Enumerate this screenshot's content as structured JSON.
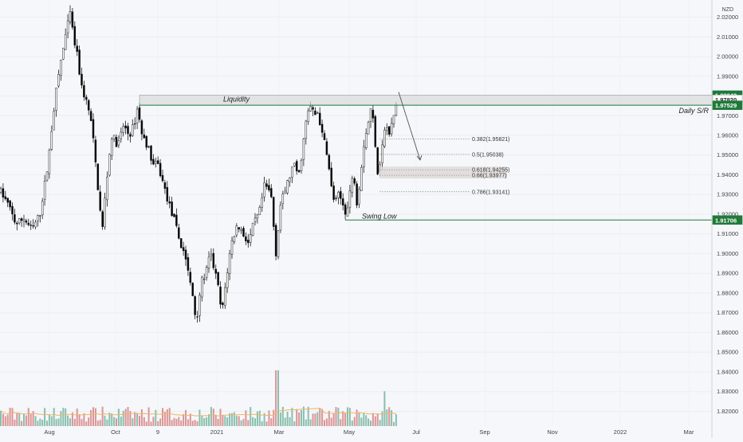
{
  "currency": "NZD",
  "colors": {
    "up": "#ffffff",
    "down": "#000000",
    "candle_border": "#1c1c1c",
    "vol_up": "#7fb8a4",
    "vol_down": "#d98a8a",
    "vol_ma": "#f0b56a",
    "line_green": "#1f7a3a",
    "box_fill": "#d9dadb",
    "fib_dotted": "#8a8a8a",
    "fib_highlight": "#e0d8d8",
    "price_label_green": "#1f7a3a",
    "price_label_white": "#ffffff",
    "axis_text": "#444444",
    "background": "#f5f7fa"
  },
  "chart_data": {
    "type": "candlestick",
    "title": "",
    "xlabel": "",
    "ylabel": "",
    "ylim": [
      1.8125,
      2.0287
    ],
    "x_ticks": [
      "Aug",
      "Oct",
      "9",
      "2021",
      "Mar",
      "May",
      "Jul",
      "Sep",
      "Nov",
      "2022",
      "Mar"
    ],
    "y_ticks": [
      1.82,
      1.83,
      1.84,
      1.85,
      1.86,
      1.87,
      1.88,
      1.89,
      1.9,
      1.91,
      1.92,
      1.93,
      1.94,
      1.95,
      1.96,
      1.97,
      1.98,
      1.99,
      2.0,
      2.01,
      2.02
    ],
    "y_tick_labels": [
      "1.82000",
      "1.83000",
      "1.84000",
      "1.85000",
      "1.86000",
      "1.87000",
      "1.88000",
      "1.89000",
      "1.90000",
      "1.91000",
      "1.92000",
      "1.93000",
      "1.94000",
      "1.95000",
      "1.96000",
      "1.97000",
      "1.98000",
      "1.99000",
      "2.00000",
      "2.01000",
      "2.02000"
    ],
    "price_path": [
      [
        0,
        1.932
      ],
      [
        10,
        1.925
      ],
      [
        20,
        1.915
      ],
      [
        30,
        1.918
      ],
      [
        40,
        1.912
      ],
      [
        50,
        1.92
      ],
      [
        60,
        1.945
      ],
      [
        68,
        1.975
      ],
      [
        75,
        1.995
      ],
      [
        82,
        2.01
      ],
      [
        88,
        2.022
      ],
      [
        92,
        2.01
      ],
      [
        97,
        2.0
      ],
      [
        102,
        1.985
      ],
      [
        110,
        1.975
      ],
      [
        115,
        1.965
      ],
      [
        120,
        1.945
      ],
      [
        125,
        1.925
      ],
      [
        128,
        1.91
      ],
      [
        133,
        1.935
      ],
      [
        140,
        1.96
      ],
      [
        148,
        1.955
      ],
      [
        155,
        1.965
      ],
      [
        162,
        1.96
      ],
      [
        168,
        1.965
      ],
      [
        173,
        1.975
      ],
      [
        178,
        1.96
      ],
      [
        185,
        1.955
      ],
      [
        192,
        1.945
      ],
      [
        198,
        1.945
      ],
      [
        205,
        1.935
      ],
      [
        212,
        1.925
      ],
      [
        220,
        1.915
      ],
      [
        226,
        1.905
      ],
      [
        232,
        1.9
      ],
      [
        237,
        1.888
      ],
      [
        242,
        1.878
      ],
      [
        246,
        1.865
      ],
      [
        252,
        1.885
      ],
      [
        258,
        1.89
      ],
      [
        264,
        1.9
      ],
      [
        270,
        1.89
      ],
      [
        275,
        1.88
      ],
      [
        278,
        1.868
      ],
      [
        283,
        1.885
      ],
      [
        290,
        1.905
      ],
      [
        298,
        1.915
      ],
      [
        305,
        1.91
      ],
      [
        312,
        1.905
      ],
      [
        318,
        1.915
      ],
      [
        325,
        1.92
      ],
      [
        332,
        1.935
      ],
      [
        340,
        1.93
      ],
      [
        346,
        1.9
      ],
      [
        352,
        1.925
      ],
      [
        360,
        1.935
      ],
      [
        368,
        1.945
      ],
      [
        375,
        1.94
      ],
      [
        380,
        1.955
      ],
      [
        385,
        1.97
      ],
      [
        390,
        1.975
      ],
      [
        394,
        1.97
      ],
      [
        399,
        1.972
      ],
      [
        404,
        1.96
      ],
      [
        409,
        1.955
      ],
      [
        415,
        1.935
      ],
      [
        420,
        1.925
      ],
      [
        425,
        1.93
      ],
      [
        430,
        1.925
      ],
      [
        435,
        1.92
      ],
      [
        440,
        1.935
      ],
      [
        444,
        1.94
      ],
      [
        448,
        1.925
      ],
      [
        452,
        1.94
      ],
      [
        456,
        1.955
      ],
      [
        461,
        1.965
      ],
      [
        466,
        1.975
      ],
      [
        470,
        1.96
      ],
      [
        474,
        1.94
      ],
      [
        478,
        1.95
      ],
      [
        483,
        1.965
      ],
      [
        488,
        1.96
      ],
      [
        494,
        1.97
      ],
      [
        498,
        1.978
      ]
    ],
    "volume": {
      "ylim": [
        0,
        100
      ],
      "ma_period": 20
    },
    "annotations": {
      "liquidity_box": {
        "label": "Liquidity",
        "y_top": 1.98042,
        "y_bottom": 1.97529
      },
      "daily_sr": {
        "label": "Daily S/R",
        "y": 1.97529
      },
      "swing_low": {
        "label": "Swing Low",
        "y": 1.91706
      },
      "fib_levels": [
        {
          "label": "0.382(1.95821)",
          "y": 1.95821
        },
        {
          "label": "0.5(1.95038)",
          "y": 1.95038
        },
        {
          "label": "0.618(1.94255)",
          "y": 1.94255
        },
        {
          "label": "0.66(1.93977)",
          "y": 1.93977
        },
        {
          "label": "0.786(1.93141)",
          "y": 1.93141
        }
      ],
      "price_labels": [
        {
          "text": "1.98042",
          "y": 1.98042,
          "style": "green"
        },
        {
          "text": "1.97820",
          "y": 1.9782,
          "style": "white"
        },
        {
          "text": "1.97529",
          "y": 1.97529,
          "style": "green"
        },
        {
          "text": "1.91706",
          "y": 1.91706,
          "style": "green"
        }
      ]
    }
  }
}
